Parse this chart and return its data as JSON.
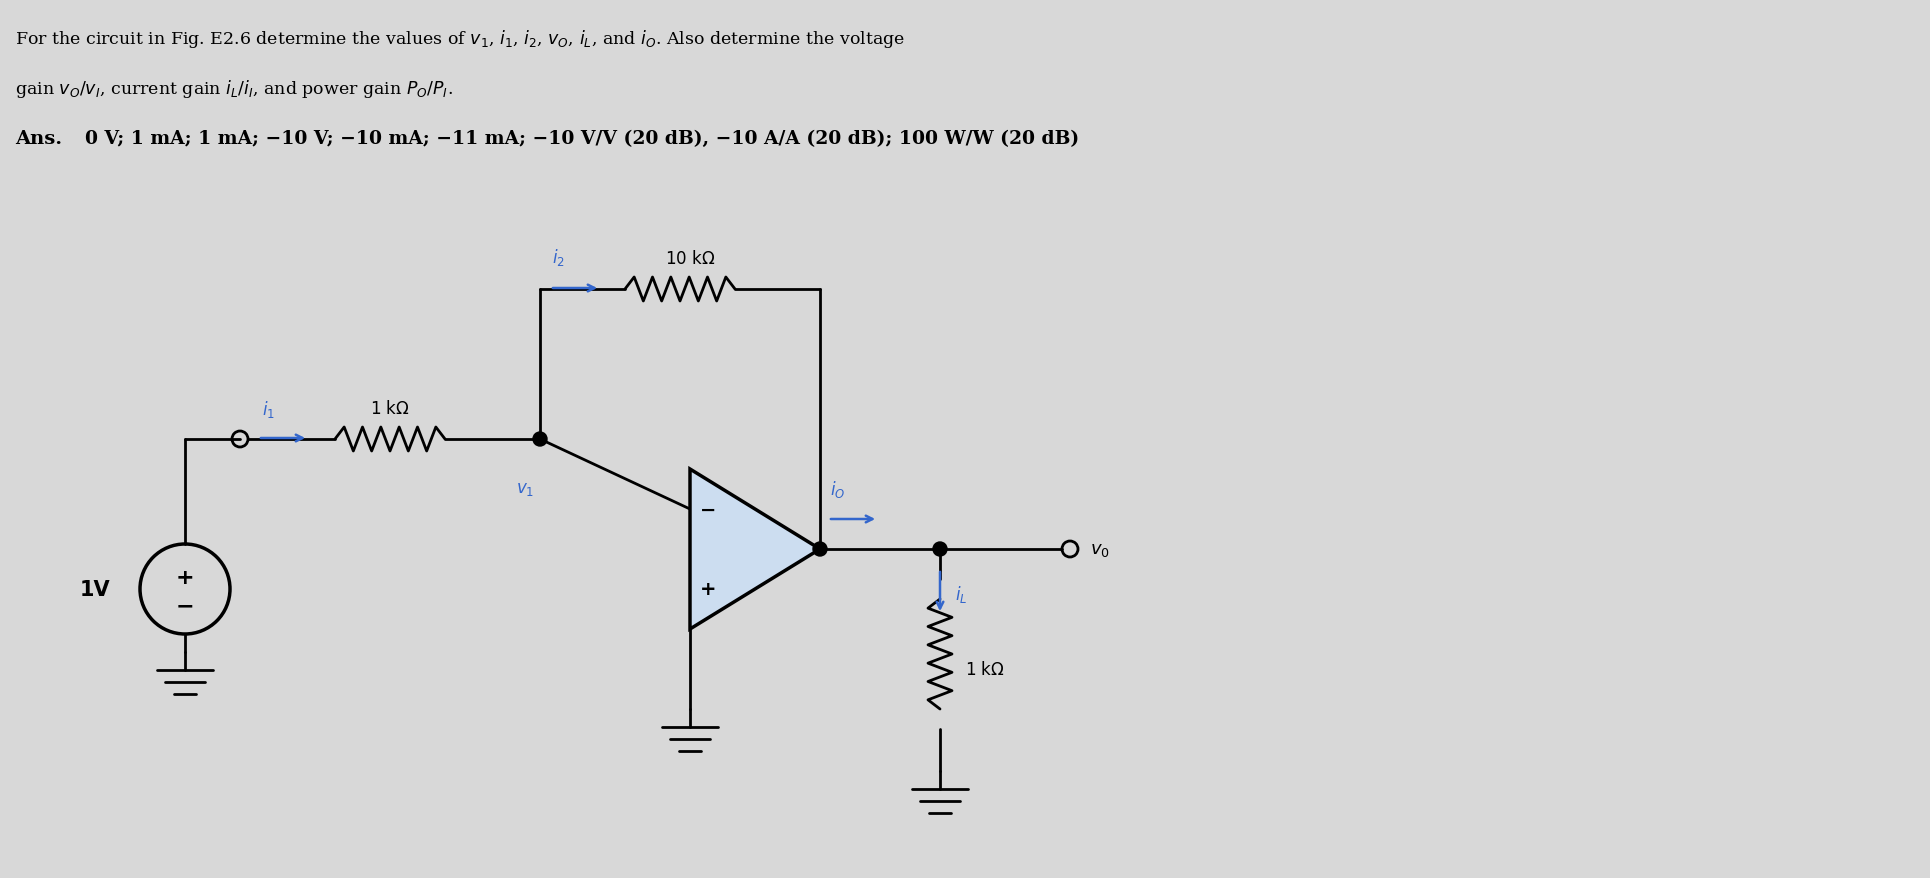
{
  "bg_color": "#d8d8d8",
  "blue_color": "#3366cc",
  "header1": "For the circuit in Fig. E2.6 determine the values of $v_1$, $i_1$, $i_2$, $v_O$, $i_L$, and $i_O$. Also determine the voltage",
  "header2": "gain $v_O/v_I$, current gain $i_L/i_I$, and power gain $P_O/P_I$.",
  "ans_label": "Ans.",
  "ans_body": "0 V; 1 mA; 1 mA; −10 V; −10 mA; −11 mA; −10 V/V (20 dB), −10 A/A (20 dB); 100 W/W (20 dB)",
  "opamp_color": "#ccddf0",
  "wire_lw": 2.0,
  "resistor_lw": 2.0
}
